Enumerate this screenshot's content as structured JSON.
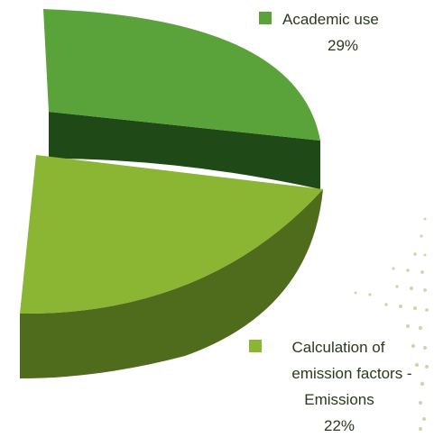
{
  "chart_data": {
    "type": "pie",
    "style": "3d-exploded",
    "slices": [
      {
        "label_lines": [
          "Academic use"
        ],
        "value_label": "29%",
        "value": 29,
        "color_top": "#5aa33a",
        "color_side": "#1f4a18"
      },
      {
        "label_lines": [
          "Calculation of",
          "emission factors -",
          "Emissions"
        ],
        "value_label": "22%",
        "value": 22,
        "color_top": "#8ab634",
        "color_side": "#4f6b1c"
      }
    ],
    "legend_placement": "inline-right",
    "decorations": {
      "dot_color": "#c9d9a8"
    }
  }
}
